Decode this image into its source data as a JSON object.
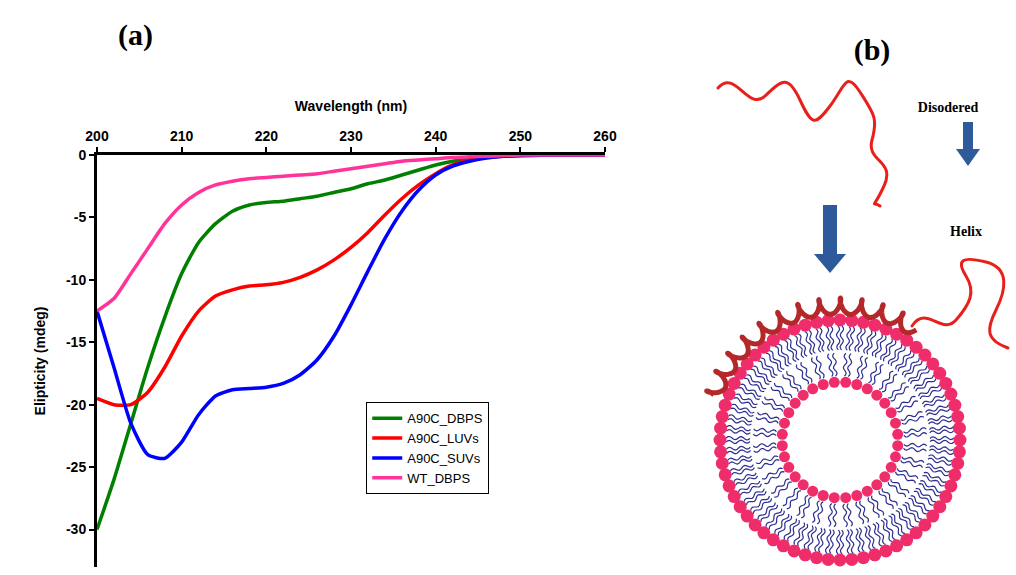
{
  "chart_data": {
    "type": "line",
    "label": "(a)",
    "xlabel": "Wavelength (nm)",
    "ylabel": "Elipticity (mdeg)",
    "x": [
      200,
      202,
      204,
      206,
      208,
      210,
      212,
      214,
      216,
      218,
      220,
      222,
      224,
      226,
      228,
      230,
      232,
      234,
      236,
      238,
      240,
      242,
      244,
      246,
      248,
      250,
      255,
      260
    ],
    "series": [
      {
        "name": "A90C_DBPS",
        "color": "#008000",
        "values": [
          -30,
          -26,
          -21.5,
          -17,
          -13,
          -9.5,
          -7,
          -5.5,
          -4.5,
          -4,
          -3.8,
          -3.7,
          -3.5,
          -3.3,
          -3,
          -2.7,
          -2.3,
          -2,
          -1.6,
          -1.2,
          -0.8,
          -0.5,
          -0.3,
          -0.15,
          -0.1,
          -0.05,
          0,
          0
        ]
      },
      {
        "name": "A90C_LUVs",
        "color": "#ff0000",
        "values": [
          -19.5,
          -20,
          -20,
          -19,
          -17,
          -14.5,
          -12.5,
          -11.3,
          -10.8,
          -10.5,
          -10.4,
          -10.2,
          -9.8,
          -9.2,
          -8.4,
          -7.4,
          -6.2,
          -4.8,
          -3.5,
          -2.4,
          -1.5,
          -0.8,
          -0.4,
          -0.2,
          -0.1,
          -0.05,
          0,
          0
        ]
      },
      {
        "name": "A90C_SUVs",
        "color": "#0000ff",
        "values": [
          -12.5,
          -17,
          -21.5,
          -24,
          -24.3,
          -23,
          -20.8,
          -19.3,
          -18.8,
          -18.7,
          -18.6,
          -18.3,
          -17.6,
          -16.4,
          -14.5,
          -12,
          -9.3,
          -6.7,
          -4.5,
          -2.8,
          -1.6,
          -0.9,
          -0.5,
          -0.25,
          -0.1,
          -0.05,
          0,
          0
        ]
      },
      {
        "name": "WT_DBPS",
        "color": "#ff3399",
        "values": [
          -12.5,
          -11.5,
          -9.5,
          -7.5,
          -5.5,
          -4,
          -3,
          -2.4,
          -2.1,
          -1.9,
          -1.8,
          -1.7,
          -1.6,
          -1.5,
          -1.3,
          -1.1,
          -0.9,
          -0.7,
          -0.5,
          -0.4,
          -0.3,
          -0.2,
          -0.15,
          -0.1,
          -0.05,
          0,
          0,
          0
        ]
      }
    ],
    "xlim": [
      200,
      260
    ],
    "xticks": [
      200,
      210,
      220,
      230,
      240,
      250,
      260
    ],
    "ylim": [
      -33,
      0
    ],
    "yticks": [
      0,
      -5,
      -10,
      -15,
      -20,
      -25,
      -30
    ],
    "grid": false,
    "legend": "lower right"
  },
  "diagram": {
    "label": "(b)",
    "texts": {
      "disordered": "Disodered",
      "helix": "Helix"
    }
  }
}
